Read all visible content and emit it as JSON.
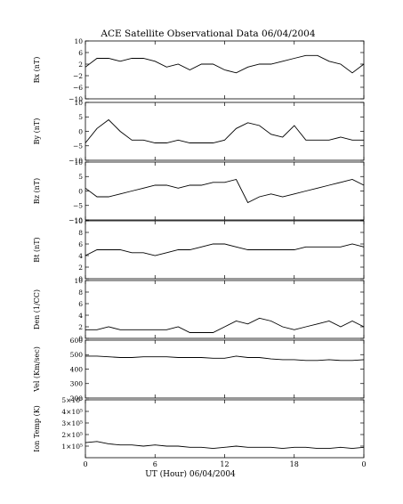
{
  "chart_data": {
    "type": "line",
    "title": "ACE Satellite Observational Data   06/04/2004",
    "xlabel": "UT (Hour)   06/04/2004",
    "x_range": [
      0,
      24
    ],
    "x_ticks": [
      "0",
      "6",
      "12",
      "18",
      "0"
    ],
    "x_tick_positions": [
      0,
      6,
      12,
      18,
      24
    ],
    "grid": false,
    "legend": "none",
    "line_color": "#000000",
    "panels": [
      {
        "ylabel": "Bx (nT)",
        "ylim": [
          -10,
          10
        ],
        "yticks": [
          10,
          6,
          2,
          -2,
          -6,
          -10
        ],
        "ytick_labels": [
          "10",
          "6",
          "2",
          "−2",
          "−6",
          "−10"
        ],
        "x": [
          0,
          1,
          2,
          3,
          4,
          5,
          6,
          7,
          8,
          9,
          10,
          11,
          12,
          13,
          14,
          15,
          16,
          17,
          18,
          19,
          20,
          21,
          22,
          23,
          24
        ],
        "values": [
          1,
          4,
          4,
          3,
          4,
          4,
          3,
          1,
          2,
          0,
          2,
          2,
          0,
          -1,
          1,
          2,
          2,
          3,
          4,
          5,
          5,
          3,
          2,
          -1,
          2
        ]
      },
      {
        "ylabel": "By (nT)",
        "ylim": [
          -10,
          10
        ],
        "yticks": [
          10,
          5,
          0,
          -5,
          -10
        ],
        "ytick_labels": [
          "10",
          "5",
          "0",
          "−5",
          "−10"
        ],
        "x": [
          0,
          1,
          2,
          3,
          4,
          5,
          6,
          7,
          8,
          9,
          10,
          11,
          12,
          13,
          14,
          15,
          16,
          17,
          18,
          19,
          20,
          21,
          22,
          23,
          24
        ],
        "values": [
          -4,
          1,
          4,
          0,
          -3,
          -3,
          -4,
          -4,
          -3,
          -4,
          -4,
          -4,
          -3,
          1,
          3,
          2,
          -1,
          -2,
          2,
          -3,
          -3,
          -3,
          -2,
          -3,
          -3
        ]
      },
      {
        "ylabel": "Bz (nT)",
        "ylim": [
          -10,
          10
        ],
        "yticks": [
          10,
          5,
          0,
          -5,
          -10
        ],
        "ytick_labels": [
          "10",
          "5",
          "0",
          "−5",
          "−10"
        ],
        "x": [
          0,
          1,
          2,
          3,
          4,
          5,
          6,
          7,
          8,
          9,
          10,
          11,
          12,
          13,
          14,
          15,
          16,
          17,
          18,
          19,
          20,
          21,
          22,
          23,
          24
        ],
        "values": [
          1,
          -2,
          -2,
          -1,
          0,
          1,
          2,
          2,
          1,
          2,
          2,
          3,
          3,
          4,
          -4,
          -2,
          -1,
          -2,
          -1,
          0,
          1,
          2,
          3,
          4,
          2
        ]
      },
      {
        "ylabel": "Bt (nT)",
        "ylim": [
          0,
          10
        ],
        "yticks": [
          10,
          8,
          6,
          4,
          2,
          0
        ],
        "ytick_labels": [
          "10",
          "8",
          "6",
          "4",
          "2",
          "0"
        ],
        "x": [
          0,
          1,
          2,
          3,
          4,
          5,
          6,
          7,
          8,
          9,
          10,
          11,
          12,
          13,
          14,
          15,
          16,
          17,
          18,
          19,
          20,
          21,
          22,
          23,
          24
        ],
        "values": [
          4,
          5,
          5,
          5,
          4.5,
          4.5,
          4,
          4.5,
          5,
          5,
          5.5,
          6,
          6,
          5.5,
          5,
          5,
          5,
          5,
          5,
          5.5,
          5.5,
          5.5,
          5.5,
          6,
          5.5
        ]
      },
      {
        "ylabel": "Den (1/CC)",
        "ylim": [
          0,
          10
        ],
        "yticks": [
          10,
          8,
          6,
          4,
          2,
          0
        ],
        "ytick_labels": [
          "10",
          "8",
          "6",
          "4",
          "2",
          "0"
        ],
        "x": [
          0,
          1,
          2,
          3,
          4,
          5,
          6,
          7,
          8,
          9,
          10,
          11,
          12,
          13,
          14,
          15,
          16,
          17,
          18,
          19,
          20,
          21,
          22,
          23,
          24
        ],
        "values": [
          1.5,
          1.5,
          2,
          1.5,
          1.5,
          1.5,
          1.5,
          1.5,
          2,
          1,
          1,
          1,
          2,
          3,
          2.5,
          3.5,
          3,
          2,
          1.5,
          2,
          2.5,
          3,
          2,
          3,
          2
        ]
      },
      {
        "ylabel": "Vel (Km/sec)",
        "ylim": [
          200,
          600
        ],
        "yticks": [
          600,
          500,
          400,
          300,
          200
        ],
        "ytick_labels": [
          "600",
          "500",
          "400",
          "300",
          "200"
        ],
        "x": [
          0,
          1,
          2,
          3,
          4,
          5,
          6,
          7,
          8,
          9,
          10,
          11,
          12,
          13,
          14,
          15,
          16,
          17,
          18,
          19,
          20,
          21,
          22,
          23,
          24
        ],
        "values": [
          490,
          490,
          485,
          480,
          480,
          485,
          485,
          485,
          480,
          480,
          480,
          475,
          475,
          490,
          480,
          480,
          470,
          465,
          465,
          460,
          460,
          465,
          460,
          460,
          465
        ]
      },
      {
        "ylabel": "Ion Temp (K)",
        "ylim": [
          0,
          500000
        ],
        "yticks": [
          500000,
          400000,
          300000,
          200000,
          100000
        ],
        "ytick_labels": [
          "5×10⁵",
          "4×10⁵",
          "3×10⁵",
          "2×10⁵",
          "1×10⁵"
        ],
        "x": [
          0,
          1,
          2,
          3,
          4,
          5,
          6,
          7,
          8,
          9,
          10,
          11,
          12,
          13,
          14,
          15,
          16,
          17,
          18,
          19,
          20,
          21,
          22,
          23,
          24
        ],
        "values": [
          130000,
          140000,
          120000,
          110000,
          110000,
          100000,
          110000,
          100000,
          100000,
          90000,
          90000,
          80000,
          90000,
          100000,
          90000,
          90000,
          90000,
          80000,
          90000,
          90000,
          80000,
          80000,
          90000,
          80000,
          90000
        ]
      }
    ]
  }
}
